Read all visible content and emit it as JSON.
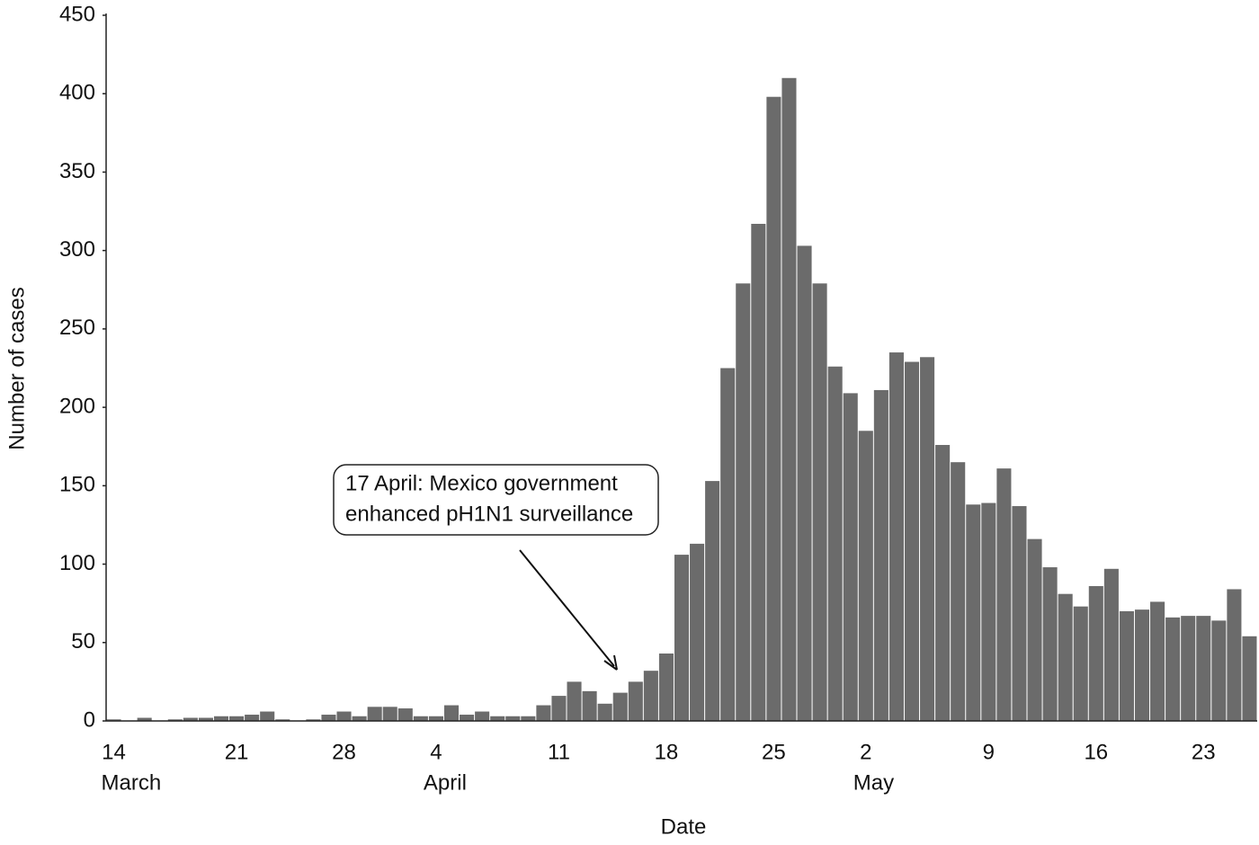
{
  "chart_data": {
    "type": "bar",
    "x_label": "Date",
    "y_label": "Number of cases",
    "color": "#6b6b6b",
    "categories": [
      "14",
      null,
      null,
      null,
      null,
      null,
      null,
      null,
      "21",
      null,
      null,
      null,
      null,
      null,
      null,
      "28",
      null,
      null,
      null,
      null,
      null,
      "4",
      null,
      null,
      null,
      null,
      null,
      null,
      null,
      "11",
      null,
      null,
      null,
      null,
      null,
      null,
      "18",
      null,
      null,
      null,
      null,
      null,
      null,
      "25",
      null,
      null,
      null,
      null,
      null,
      "2",
      null,
      null,
      null,
      null,
      null,
      null,
      null,
      "9",
      null,
      null,
      null,
      null,
      null,
      null,
      "16",
      null,
      null,
      null,
      null,
      null,
      null,
      "23",
      null,
      null,
      null
    ],
    "month_labels": [
      "March",
      "April",
      "May"
    ],
    "values": [
      1,
      0,
      2,
      0,
      1,
      2,
      2,
      3,
      3,
      4,
      6,
      1,
      0,
      1,
      4,
      6,
      3,
      9,
      9,
      8,
      3,
      3,
      10,
      4,
      6,
      3,
      3,
      3,
      10,
      16,
      25,
      19,
      11,
      18,
      25,
      32,
      43,
      106,
      113,
      153,
      225,
      279,
      317,
      398,
      410,
      303,
      279,
      226,
      209,
      185,
      211,
      235,
      229,
      232,
      176,
      165,
      138,
      139,
      161,
      137,
      116,
      98,
      81,
      73,
      86,
      97,
      70,
      71,
      76,
      66,
      67,
      67,
      64,
      84,
      54
    ],
    "ylim": [
      0,
      450
    ],
    "yticks": [
      0,
      50,
      100,
      150,
      200,
      250,
      300,
      350,
      400,
      450
    ],
    "annotation": [
      "17 April: Mexico government",
      "enhanced pH1N1 surveillance"
    ]
  }
}
